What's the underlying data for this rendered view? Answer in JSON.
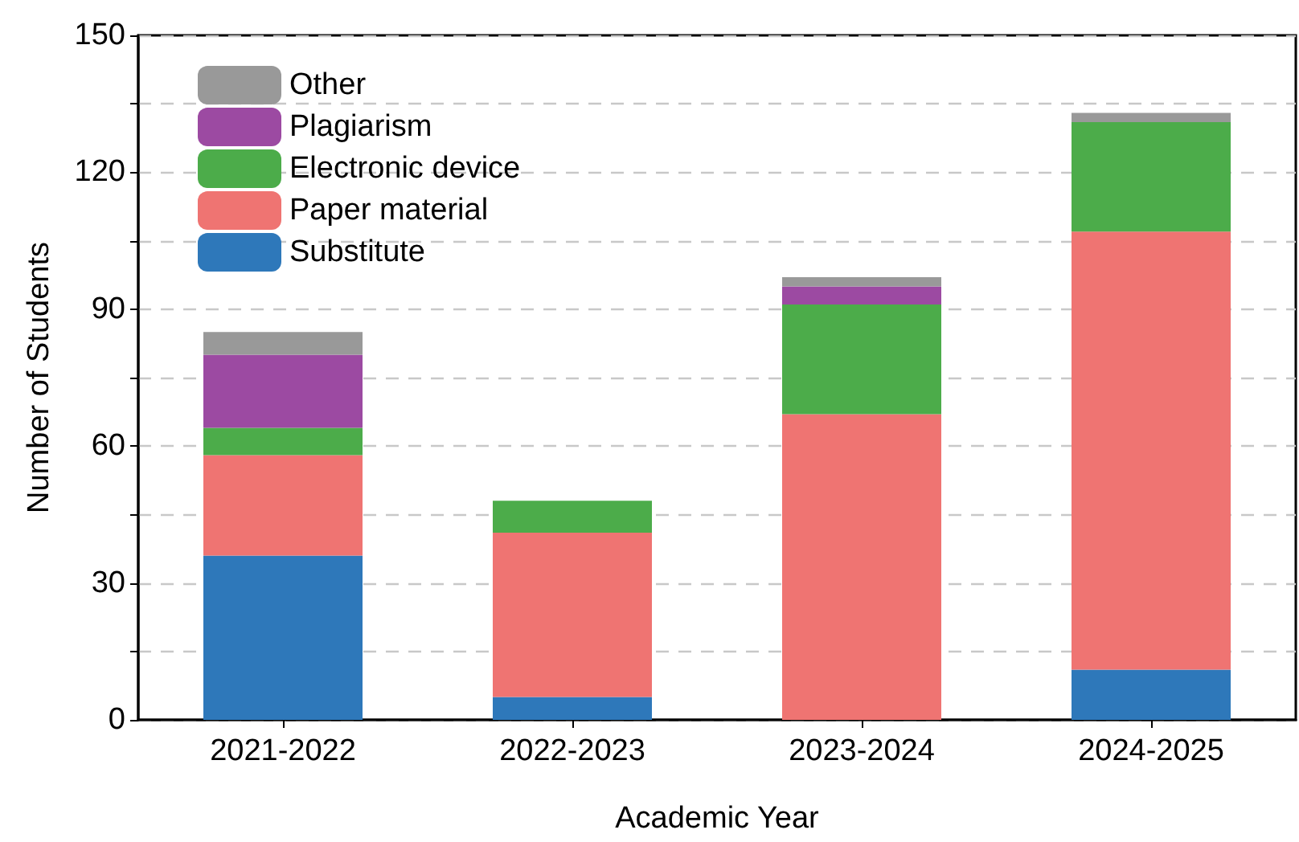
{
  "chart_data": {
    "type": "bar",
    "stacked": true,
    "xlabel": "Academic Year",
    "ylabel": "Number of Students",
    "categories": [
      "2021-2022",
      "2022-2023",
      "2023-2024",
      "2024-2025"
    ],
    "series": [
      {
        "name": "Substitute",
        "color": "#2e78ba",
        "values": [
          36,
          5,
          0,
          11
        ]
      },
      {
        "name": "Paper material",
        "color": "#ef7472",
        "values": [
          22,
          36,
          67,
          96
        ]
      },
      {
        "name": "Electronic device",
        "color": "#4cac4a",
        "values": [
          6,
          7,
          24,
          24
        ]
      },
      {
        "name": "Plagiarism",
        "color": "#9c4aa2",
        "values": [
          16,
          0,
          4,
          0
        ]
      },
      {
        "name": "Other",
        "color": "#999999",
        "values": [
          5,
          0,
          2,
          2
        ]
      }
    ],
    "ylim": [
      0,
      150
    ],
    "yticks": [
      0,
      {
        "value": 15,
        "label": null
      },
      30,
      {
        "value": 45,
        "label": null
      },
      60,
      {
        "value": 75,
        "label": null
      },
      90,
      {
        "value": 105,
        "label": null
      },
      120,
      {
        "value": 135,
        "label": null
      },
      150
    ],
    "grid": "y",
    "legend": "top left"
  }
}
